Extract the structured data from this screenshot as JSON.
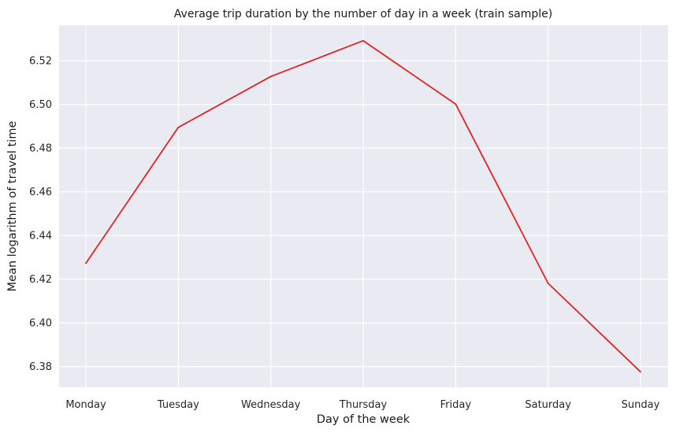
{
  "chart_data": {
    "type": "line",
    "title": "Average trip duration by the number of day in a week (train sample)",
    "xlabel": "Day of the week",
    "ylabel": "Mean logarithm of travel time",
    "categories": [
      "Monday",
      "Tuesday",
      "Wednesday",
      "Thursday",
      "Friday",
      "Saturday",
      "Sunday"
    ],
    "values": [
      6.4273,
      6.4895,
      6.5128,
      6.5292,
      6.5002,
      6.4181,
      6.3776
    ],
    "ylim": [
      6.3705,
      6.5363
    ],
    "yticks": [
      6.38,
      6.4,
      6.42,
      6.44,
      6.46,
      6.48,
      6.5,
      6.52
    ],
    "ytick_labels": [
      "6.38",
      "6.40",
      "6.42",
      "6.44",
      "6.46",
      "6.48",
      "6.50",
      "6.52"
    ],
    "grid": true,
    "legend": "none",
    "colors": {
      "line": "#e02424",
      "plot_background": "#eaeaf2",
      "grid": "#ffffff"
    }
  }
}
